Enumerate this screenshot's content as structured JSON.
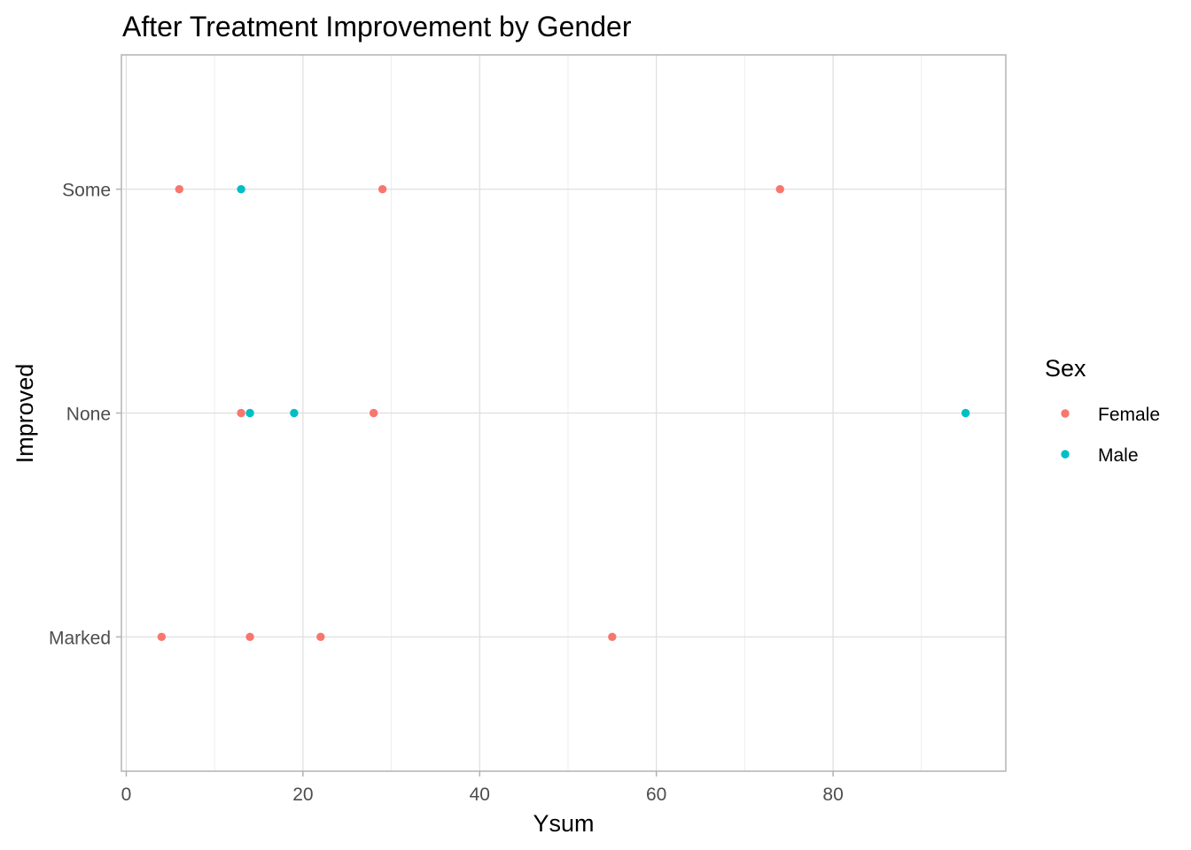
{
  "chart_data": {
    "type": "scatter",
    "title": "After Treatment Improvement by Gender",
    "xlabel": "Ysum",
    "ylabel": "Improved",
    "xlim": [
      -0.55,
      99.55
    ],
    "x_ticks": [
      0,
      20,
      40,
      60,
      80
    ],
    "x_minor_ticks": [
      10,
      30,
      50,
      70,
      90
    ],
    "categories": [
      "Marked",
      "None",
      "Some"
    ],
    "grid": true,
    "legend": {
      "title": "Sex",
      "position": "right"
    },
    "series": [
      {
        "name": "Female",
        "color": "#F8766D",
        "points": [
          {
            "x": 6,
            "y": "Some"
          },
          {
            "x": 29,
            "y": "Some"
          },
          {
            "x": 74,
            "y": "Some"
          },
          {
            "x": 13,
            "y": "None"
          },
          {
            "x": 28,
            "y": "None"
          },
          {
            "x": 4,
            "y": "Marked"
          },
          {
            "x": 14,
            "y": "Marked"
          },
          {
            "x": 22,
            "y": "Marked"
          },
          {
            "x": 55,
            "y": "Marked"
          }
        ]
      },
      {
        "name": "Male",
        "color": "#00BFC4",
        "points": [
          {
            "x": 13,
            "y": "Some"
          },
          {
            "x": 14,
            "y": "None"
          },
          {
            "x": 19,
            "y": "None"
          },
          {
            "x": 95,
            "y": "None"
          }
        ]
      }
    ]
  }
}
